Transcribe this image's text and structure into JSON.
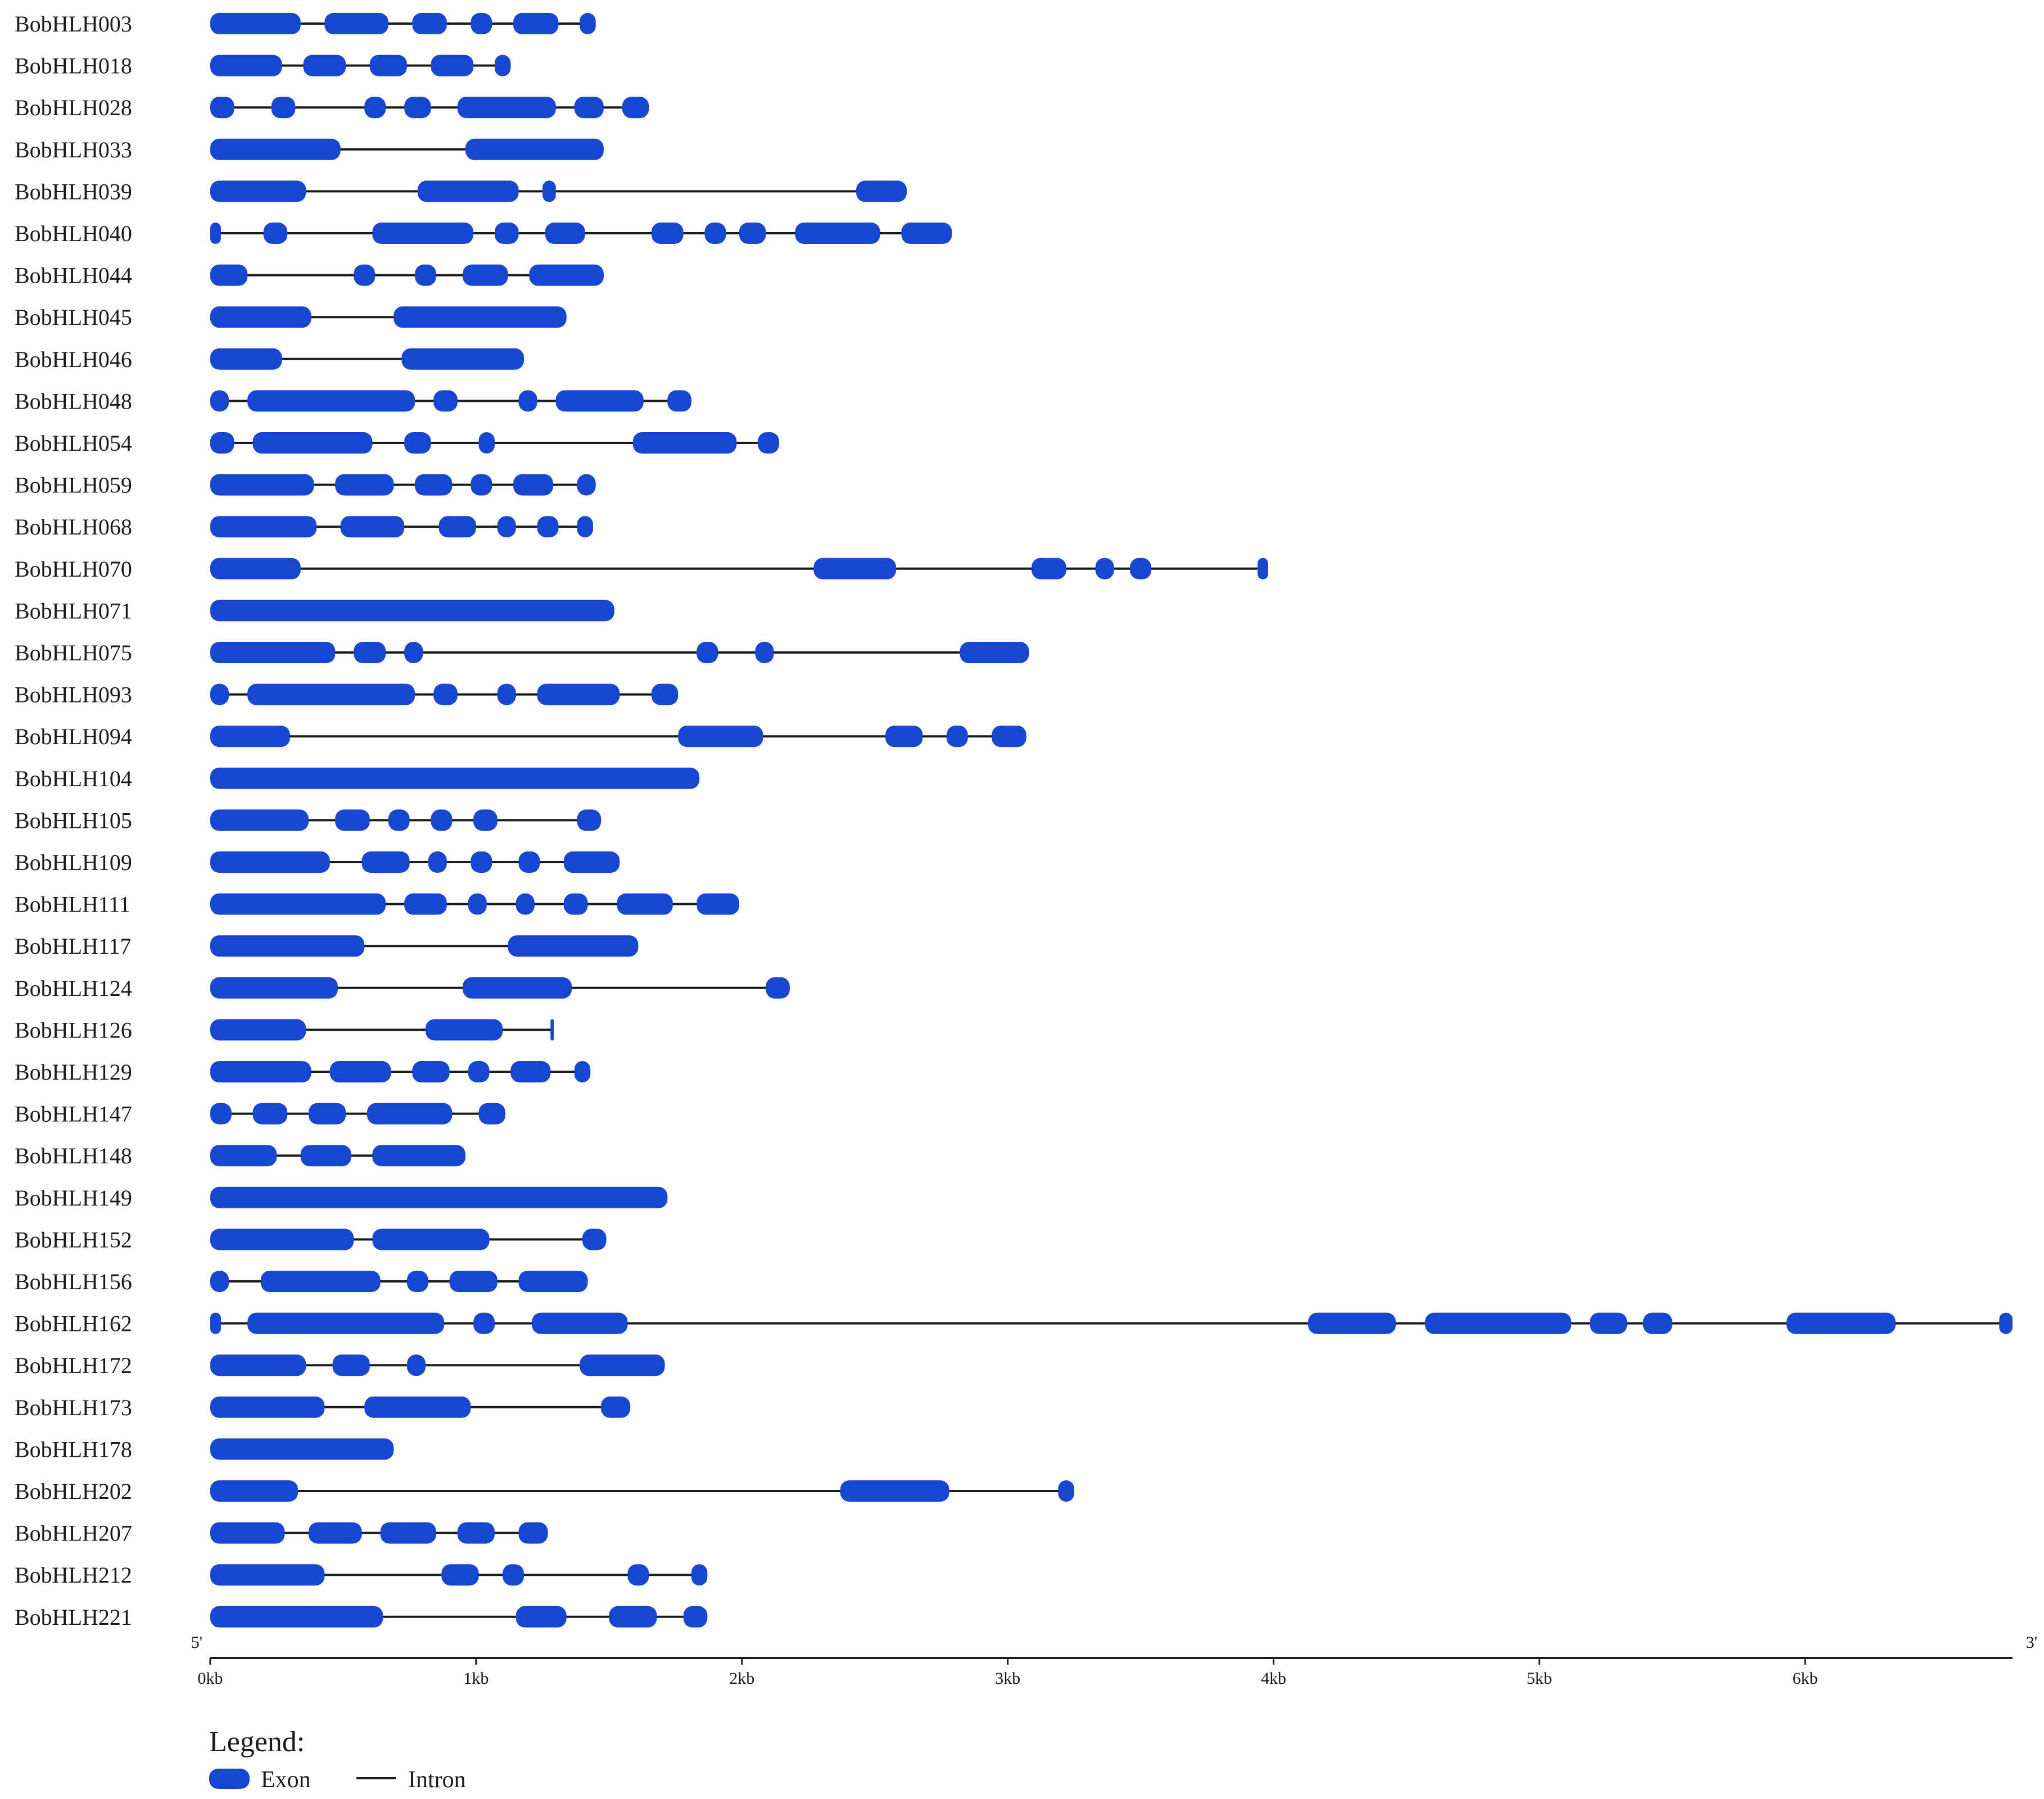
{
  "chart_data": {
    "type": "gene-structure",
    "unit": "kb",
    "xlim": [
      0,
      6.78
    ],
    "x_ticks": [
      "0kb",
      "1kb",
      "2kb",
      "3kb",
      "4kb",
      "5kb",
      "6kb"
    ],
    "end_labels": {
      "five_prime": "5'",
      "three_prime": "3'"
    },
    "colors": {
      "exon": "#1747d1",
      "intron": "#1a1a1a",
      "axis": "#1a1a1a"
    },
    "legend": {
      "title": "Legend:",
      "exon": "Exon",
      "intron": "Intron"
    },
    "genes": [
      {
        "name": "BobHLH003",
        "length": 1.45,
        "exons": [
          [
            0.0,
            0.34
          ],
          [
            0.43,
            0.67
          ],
          [
            0.76,
            0.89
          ],
          [
            0.98,
            1.06
          ],
          [
            1.14,
            1.31
          ],
          [
            1.39,
            1.45
          ]
        ]
      },
      {
        "name": "BobHLH018",
        "length": 1.13,
        "exons": [
          [
            0.0,
            0.27
          ],
          [
            0.35,
            0.51
          ],
          [
            0.6,
            0.74
          ],
          [
            0.83,
            0.99
          ],
          [
            1.07,
            1.13
          ]
        ]
      },
      {
        "name": "BobHLH028",
        "length": 1.65,
        "exons": [
          [
            0.0,
            0.09
          ],
          [
            0.23,
            0.32
          ],
          [
            0.58,
            0.66
          ],
          [
            0.73,
            0.83
          ],
          [
            0.93,
            1.3
          ],
          [
            1.37,
            1.48
          ],
          [
            1.55,
            1.65
          ]
        ]
      },
      {
        "name": "BobHLH033",
        "length": 1.48,
        "exons": [
          [
            0.0,
            0.49
          ],
          [
            0.96,
            1.48
          ]
        ]
      },
      {
        "name": "BobHLH039",
        "length": 2.62,
        "exons": [
          [
            0.0,
            0.36
          ],
          [
            0.78,
            1.16
          ],
          [
            1.25,
            1.3
          ],
          [
            2.43,
            2.62
          ]
        ]
      },
      {
        "name": "BobHLH040",
        "length": 2.79,
        "exons": [
          [
            0.0,
            0.04
          ],
          [
            0.2,
            0.29
          ],
          [
            0.61,
            0.99
          ],
          [
            1.07,
            1.16
          ],
          [
            1.26,
            1.41
          ],
          [
            1.66,
            1.78
          ],
          [
            1.86,
            1.94
          ],
          [
            1.99,
            2.09
          ],
          [
            2.2,
            2.52
          ],
          [
            2.6,
            2.79
          ]
        ]
      },
      {
        "name": "BobHLH044",
        "length": 1.48,
        "exons": [
          [
            0.0,
            0.14
          ],
          [
            0.54,
            0.62
          ],
          [
            0.77,
            0.85
          ],
          [
            0.95,
            1.12
          ],
          [
            1.2,
            1.48
          ]
        ]
      },
      {
        "name": "BobHLH045",
        "length": 1.34,
        "exons": [
          [
            0.0,
            0.38
          ],
          [
            0.69,
            1.34
          ]
        ]
      },
      {
        "name": "BobHLH046",
        "length": 1.18,
        "exons": [
          [
            0.0,
            0.27
          ],
          [
            0.72,
            1.18
          ]
        ]
      },
      {
        "name": "BobHLH048",
        "length": 1.81,
        "exons": [
          [
            0.0,
            0.07
          ],
          [
            0.14,
            0.77
          ],
          [
            0.84,
            0.93
          ],
          [
            1.16,
            1.23
          ],
          [
            1.3,
            1.63
          ],
          [
            1.72,
            1.81
          ]
        ]
      },
      {
        "name": "BobHLH054",
        "length": 2.14,
        "exons": [
          [
            0.0,
            0.09
          ],
          [
            0.16,
            0.61
          ],
          [
            0.73,
            0.83
          ],
          [
            1.01,
            1.07
          ],
          [
            1.59,
            1.98
          ],
          [
            2.06,
            2.14
          ]
        ]
      },
      {
        "name": "BobHLH059",
        "length": 1.45,
        "exons": [
          [
            0.0,
            0.39
          ],
          [
            0.47,
            0.69
          ],
          [
            0.77,
            0.91
          ],
          [
            0.98,
            1.06
          ],
          [
            1.14,
            1.29
          ],
          [
            1.38,
            1.45
          ]
        ]
      },
      {
        "name": "BobHLH068",
        "length": 1.44,
        "exons": [
          [
            0.0,
            0.4
          ],
          [
            0.49,
            0.73
          ],
          [
            0.86,
            1.0
          ],
          [
            1.08,
            1.15
          ],
          [
            1.23,
            1.31
          ],
          [
            1.38,
            1.44
          ]
        ]
      },
      {
        "name": "BobHLH070",
        "length": 3.98,
        "exons": [
          [
            0.0,
            0.34
          ],
          [
            2.27,
            2.58
          ],
          [
            3.09,
            3.22
          ],
          [
            3.33,
            3.4
          ],
          [
            3.46,
            3.54
          ],
          [
            3.94,
            3.98
          ]
        ]
      },
      {
        "name": "BobHLH071",
        "length": 1.52,
        "exons": [
          [
            0.0,
            1.52
          ]
        ]
      },
      {
        "name": "BobHLH075",
        "length": 3.08,
        "exons": [
          [
            0.0,
            0.47
          ],
          [
            0.54,
            0.66
          ],
          [
            0.73,
            0.8
          ],
          [
            1.83,
            1.91
          ],
          [
            2.05,
            2.12
          ],
          [
            2.82,
            3.08
          ]
        ]
      },
      {
        "name": "BobHLH093",
        "length": 1.76,
        "exons": [
          [
            0.0,
            0.07
          ],
          [
            0.14,
            0.77
          ],
          [
            0.84,
            0.93
          ],
          [
            1.08,
            1.15
          ],
          [
            1.23,
            1.54
          ],
          [
            1.66,
            1.76
          ]
        ]
      },
      {
        "name": "BobHLH094",
        "length": 3.07,
        "exons": [
          [
            0.0,
            0.3
          ],
          [
            1.76,
            2.08
          ],
          [
            2.54,
            2.68
          ],
          [
            2.77,
            2.85
          ],
          [
            2.94,
            3.07
          ]
        ]
      },
      {
        "name": "BobHLH104",
        "length": 1.84,
        "exons": [
          [
            0.0,
            1.84
          ]
        ]
      },
      {
        "name": "BobHLH105",
        "length": 1.47,
        "exons": [
          [
            0.0,
            0.37
          ],
          [
            0.47,
            0.6
          ],
          [
            0.67,
            0.75
          ],
          [
            0.83,
            0.91
          ],
          [
            0.99,
            1.08
          ],
          [
            1.38,
            1.47
          ]
        ]
      },
      {
        "name": "BobHLH109",
        "length": 1.54,
        "exons": [
          [
            0.0,
            0.45
          ],
          [
            0.57,
            0.75
          ],
          [
            0.82,
            0.89
          ],
          [
            0.98,
            1.06
          ],
          [
            1.16,
            1.24
          ],
          [
            1.33,
            1.54
          ]
        ]
      },
      {
        "name": "BobHLH111",
        "length": 1.99,
        "exons": [
          [
            0.0,
            0.66
          ],
          [
            0.73,
            0.89
          ],
          [
            0.97,
            1.04
          ],
          [
            1.15,
            1.22
          ],
          [
            1.33,
            1.42
          ],
          [
            1.53,
            1.74
          ],
          [
            1.83,
            1.99
          ]
        ]
      },
      {
        "name": "BobHLH117",
        "length": 1.61,
        "exons": [
          [
            0.0,
            0.58
          ],
          [
            1.12,
            1.61
          ]
        ]
      },
      {
        "name": "BobHLH124",
        "length": 2.18,
        "exons": [
          [
            0.0,
            0.48
          ],
          [
            0.95,
            1.36
          ],
          [
            2.09,
            2.18
          ]
        ]
      },
      {
        "name": "BobHLH126",
        "length": 1.29,
        "exons": [
          [
            0.0,
            0.36
          ],
          [
            0.81,
            1.1
          ],
          [
            1.28,
            1.29
          ]
        ]
      },
      {
        "name": "BobHLH129",
        "length": 1.43,
        "exons": [
          [
            0.0,
            0.38
          ],
          [
            0.45,
            0.68
          ],
          [
            0.76,
            0.9
          ],
          [
            0.97,
            1.05
          ],
          [
            1.13,
            1.28
          ],
          [
            1.37,
            1.43
          ]
        ]
      },
      {
        "name": "BobHLH147",
        "length": 1.11,
        "exons": [
          [
            0.0,
            0.08
          ],
          [
            0.16,
            0.29
          ],
          [
            0.37,
            0.51
          ],
          [
            0.59,
            0.91
          ],
          [
            1.01,
            1.11
          ]
        ]
      },
      {
        "name": "BobHLH148",
        "length": 0.96,
        "exons": [
          [
            0.0,
            0.25
          ],
          [
            0.34,
            0.53
          ],
          [
            0.61,
            0.96
          ]
        ]
      },
      {
        "name": "BobHLH149",
        "length": 1.72,
        "exons": [
          [
            0.0,
            1.72
          ]
        ]
      },
      {
        "name": "BobHLH152",
        "length": 1.49,
        "exons": [
          [
            0.0,
            0.54
          ],
          [
            0.61,
            1.05
          ],
          [
            1.4,
            1.49
          ]
        ]
      },
      {
        "name": "BobHLH156",
        "length": 1.42,
        "exons": [
          [
            0.0,
            0.07
          ],
          [
            0.19,
            0.64
          ],
          [
            0.74,
            0.82
          ],
          [
            0.9,
            1.08
          ],
          [
            1.16,
            1.42
          ]
        ]
      },
      {
        "name": "BobHLH162",
        "length": 6.78,
        "exons": [
          [
            0.0,
            0.04
          ],
          [
            0.14,
            0.88
          ],
          [
            0.99,
            1.07
          ],
          [
            1.21,
            1.57
          ],
          [
            4.13,
            4.46
          ],
          [
            4.57,
            5.12
          ],
          [
            5.19,
            5.33
          ],
          [
            5.39,
            5.5
          ],
          [
            5.93,
            6.34
          ],
          [
            6.73,
            6.78
          ]
        ]
      },
      {
        "name": "BobHLH172",
        "length": 1.71,
        "exons": [
          [
            0.0,
            0.36
          ],
          [
            0.46,
            0.6
          ],
          [
            0.74,
            0.81
          ],
          [
            1.39,
            1.71
          ]
        ]
      },
      {
        "name": "BobHLH173",
        "length": 1.58,
        "exons": [
          [
            0.0,
            0.43
          ],
          [
            0.58,
            0.98
          ],
          [
            1.47,
            1.58
          ]
        ]
      },
      {
        "name": "BobHLH178",
        "length": 0.69,
        "exons": [
          [
            0.0,
            0.69
          ]
        ]
      },
      {
        "name": "BobHLH202",
        "length": 3.25,
        "exons": [
          [
            0.0,
            0.33
          ],
          [
            2.37,
            2.78
          ],
          [
            3.19,
            3.25
          ]
        ]
      },
      {
        "name": "BobHLH207",
        "length": 1.27,
        "exons": [
          [
            0.0,
            0.28
          ],
          [
            0.37,
            0.57
          ],
          [
            0.64,
            0.85
          ],
          [
            0.93,
            1.07
          ],
          [
            1.16,
            1.27
          ]
        ]
      },
      {
        "name": "BobHLH212",
        "length": 1.87,
        "exons": [
          [
            0.0,
            0.43
          ],
          [
            0.87,
            1.01
          ],
          [
            1.1,
            1.18
          ],
          [
            1.57,
            1.65
          ],
          [
            1.81,
            1.87
          ]
        ]
      },
      {
        "name": "BobHLH221",
        "length": 1.87,
        "exons": [
          [
            0.0,
            0.65
          ],
          [
            1.15,
            1.34
          ],
          [
            1.5,
            1.68
          ],
          [
            1.78,
            1.87
          ]
        ]
      }
    ]
  }
}
